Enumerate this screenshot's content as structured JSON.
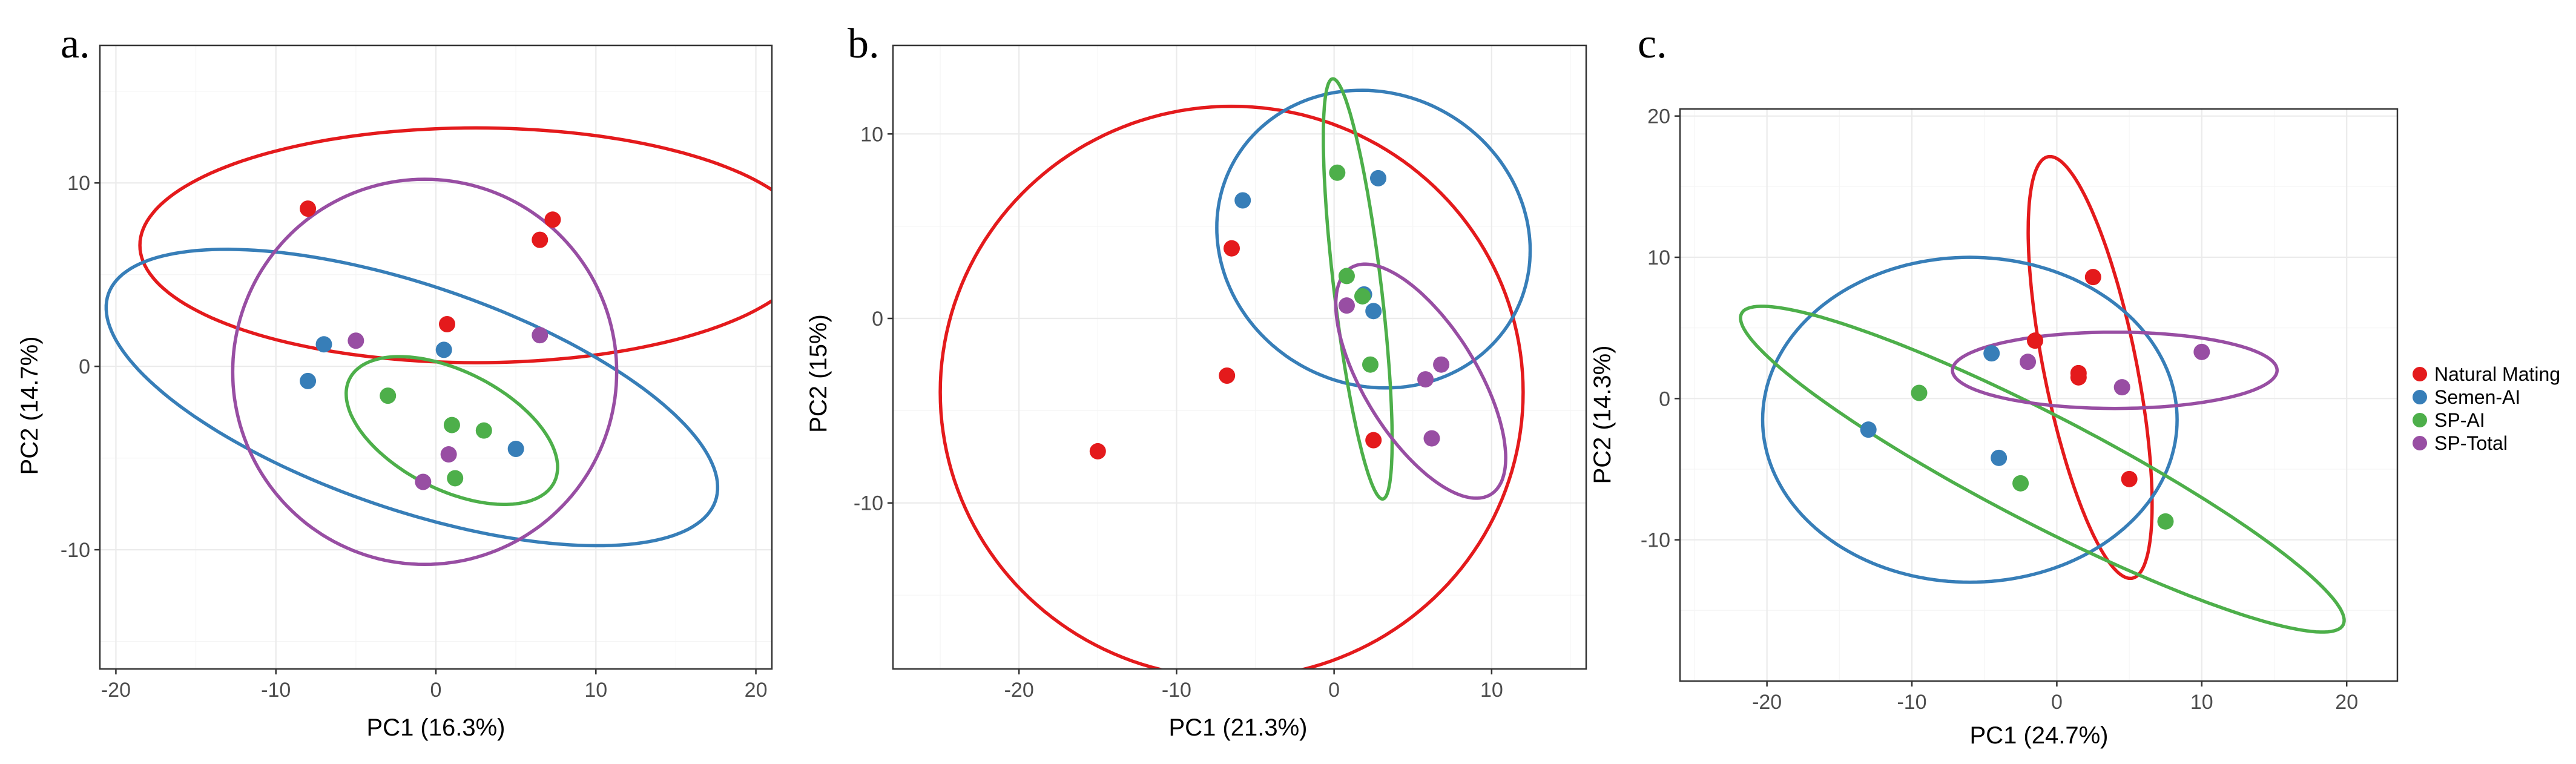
{
  "colors": {
    "Natural Mating": "#e41a1c",
    "Semen-AI": "#377eb8",
    "SP-AI": "#4daf4a",
    "SP-Total": "#984ea3"
  },
  "legend": {
    "entries": [
      "Natural Mating",
      "Semen-AI",
      "SP-AI",
      "SP-Total"
    ]
  },
  "chart_data": [
    {
      "type": "scatter",
      "panel": "a.",
      "xlabel": "PC1 (16.3%)",
      "ylabel": "PC2 (14.7%)",
      "xlim": [
        -21,
        21
      ],
      "ylim": [
        -16.5,
        17.5
      ],
      "xticks": [
        -20,
        -10,
        0,
        10,
        20
      ],
      "yticks": [
        -10,
        0,
        10
      ],
      "groups": [
        {
          "name": "Natural Mating",
          "points": [
            [
              -8,
              8.6
            ],
            [
              7.3,
              8
            ],
            [
              6.5,
              6.9
            ],
            [
              0.7,
              2.3
            ]
          ],
          "ellipse": {
            "cx": 2.5,
            "cy": 6.6,
            "rx": 21,
            "ry": 6.4,
            "angle": 0
          }
        },
        {
          "name": "Semen-AI",
          "points": [
            [
              -7,
              1.2
            ],
            [
              -8,
              -0.8
            ],
            [
              0.5,
              0.9
            ],
            [
              5,
              -4.5
            ]
          ],
          "ellipse": {
            "cx": -1.5,
            "cy": -1.7,
            "rx": 19.8,
            "ry": 6.2,
            "angle": -16
          }
        },
        {
          "name": "SP-AI",
          "points": [
            [
              -3,
              -1.6
            ],
            [
              1,
              -3.2
            ],
            [
              3,
              -3.5
            ],
            [
              1.2,
              -6.1
            ]
          ],
          "ellipse": {
            "cx": 1,
            "cy": -3.5,
            "rx": 7,
            "ry": 3.3,
            "angle": -22
          }
        },
        {
          "name": "SP-Total",
          "points": [
            [
              -5,
              1.4
            ],
            [
              6.5,
              1.7
            ],
            [
              0.8,
              -4.8
            ],
            [
              -0.8,
              -6.3
            ]
          ],
          "ellipse": {
            "cx": -0.7,
            "cy": -0.3,
            "rx": 12,
            "ry": 10.5,
            "angle": 0
          }
        }
      ]
    },
    {
      "type": "scatter",
      "panel": "b.",
      "xlabel": "PC1 (21.3%)",
      "ylabel": "PC2 (15%)",
      "xlim": [
        -28,
        16
      ],
      "ylim": [
        -19,
        14.8
      ],
      "xticks": [
        -20,
        -10,
        0,
        10
      ],
      "yticks": [
        -10,
        0,
        10
      ],
      "groups": [
        {
          "name": "Natural Mating",
          "points": [
            [
              -6.5,
              3.8
            ],
            [
              -6.8,
              -3.1
            ],
            [
              -15,
              -7.2
            ],
            [
              2.5,
              -6.6
            ]
          ],
          "ellipse": {
            "cx": -6.5,
            "cy": -4,
            "rx": 18.5,
            "ry": 15.5,
            "angle": 0
          }
        },
        {
          "name": "Semen-AI",
          "points": [
            [
              -5.8,
              6.4
            ],
            [
              2.8,
              7.6
            ],
            [
              1.9,
              1.3
            ],
            [
              2.5,
              0.4
            ]
          ],
          "ellipse": {
            "cx": 2.5,
            "cy": 4.3,
            "rx": 10,
            "ry": 8,
            "angle": -10
          }
        },
        {
          "name": "SP-AI",
          "points": [
            [
              0.2,
              7.9
            ],
            [
              0.8,
              2.3
            ],
            [
              1.8,
              1.2
            ],
            [
              2.3,
              -2.5
            ]
          ],
          "ellipse": {
            "cx": 1.5,
            "cy": 1.6,
            "rx": 1.5,
            "ry": 11.5,
            "angle": 8
          }
        },
        {
          "name": "SP-Total",
          "points": [
            [
              0.8,
              0.7
            ],
            [
              5.8,
              -3.3
            ],
            [
              6.8,
              -2.5
            ],
            [
              6.2,
              -6.5
            ]
          ],
          "ellipse": {
            "cx": 5.5,
            "cy": -3.4,
            "rx": 3.4,
            "ry": 7.6,
            "angle": 38
          }
        }
      ]
    },
    {
      "type": "scatter",
      "panel": "c.",
      "xlabel": "PC1 (24.7%)",
      "ylabel": "PC2 (14.3%)",
      "xlim": [
        -26,
        23.5
      ],
      "ylim": [
        -20,
        20.5
      ],
      "xticks": [
        -20,
        -10,
        0,
        10,
        20
      ],
      "yticks": [
        -10,
        0,
        10,
        20
      ],
      "groups": [
        {
          "name": "Natural Mating",
          "points": [
            [
              2.5,
              8.6
            ],
            [
              -1.5,
              4.1
            ],
            [
              1.5,
              1.8
            ],
            [
              1.5,
              1.5
            ],
            [
              5,
              -5.7
            ]
          ],
          "ellipse": {
            "cx": 2.3,
            "cy": 2.2,
            "rx": 3.2,
            "ry": 15.2,
            "angle": 11
          }
        },
        {
          "name": "Semen-AI",
          "points": [
            [
              -4.5,
              3.2
            ],
            [
              -13,
              -2.2
            ],
            [
              -4,
              -4.2
            ]
          ],
          "ellipse": {
            "cx": -6,
            "cy": -1.5,
            "rx": 14.3,
            "ry": 11.5,
            "angle": 0
          }
        },
        {
          "name": "SP-AI",
          "points": [
            [
              -9.5,
              0.4
            ],
            [
              -2.5,
              -6
            ],
            [
              7.5,
              -8.7
            ]
          ],
          "ellipse": {
            "cx": -1,
            "cy": -5,
            "rx": 23.5,
            "ry": 3.8,
            "angle": -28
          }
        },
        {
          "name": "SP-Total",
          "points": [
            [
              -2,
              2.6
            ],
            [
              4.5,
              0.8
            ],
            [
              10,
              3.3
            ]
          ],
          "ellipse": {
            "cx": 4,
            "cy": 2,
            "rx": 11.2,
            "ry": 2.7,
            "angle": 0
          }
        }
      ]
    }
  ]
}
